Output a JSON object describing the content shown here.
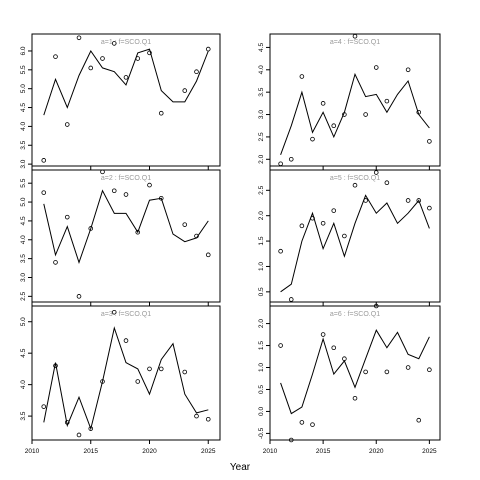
{
  "figure": {
    "xlabel": "Year"
  },
  "chart_data": [
    {
      "type": "line",
      "panel_label": "a=1 : f=SCO.Q1",
      "x": [
        2011,
        2012,
        2013,
        2014,
        2015,
        2016,
        2017,
        2018,
        2019,
        2020,
        2021,
        2022,
        2023,
        2024,
        2025
      ],
      "series": [
        {
          "kind": "line",
          "values": [
            4.3,
            5.25,
            4.5,
            5.35,
            6.0,
            5.55,
            5.45,
            5.1,
            5.95,
            6.05,
            4.95,
            4.65,
            4.65,
            5.2,
            6.0
          ]
        },
        {
          "kind": "points",
          "values": [
            3.1,
            5.85,
            4.05,
            6.35,
            5.55,
            5.8,
            6.2,
            5.3,
            5.8,
            5.95,
            4.35,
            null,
            4.95,
            5.45,
            6.05
          ]
        }
      ],
      "xlim": [
        2010,
        2026
      ],
      "ylim": [
        2.95,
        6.45
      ],
      "yticks": [
        3.0,
        3.5,
        4.0,
        4.5,
        5.0,
        5.5,
        6.0
      ],
      "ytick_labels": [
        "3.0",
        "3.5",
        "4.0",
        "4.5",
        "5.0",
        "5.5",
        "6.0"
      ],
      "xticks": [
        2010,
        2015,
        2020,
        2025
      ],
      "xtick_labels": [],
      "grid": false
    },
    {
      "type": "line",
      "panel_label": "a=2 : f=SCO.Q1",
      "x": [
        2011,
        2012,
        2013,
        2014,
        2015,
        2016,
        2017,
        2018,
        2019,
        2020,
        2021,
        2022,
        2023,
        2024,
        2025
      ],
      "series": [
        {
          "kind": "line",
          "values": [
            4.95,
            3.6,
            4.35,
            3.4,
            4.3,
            5.3,
            4.7,
            4.7,
            4.2,
            5.05,
            5.1,
            4.15,
            3.95,
            4.05,
            4.5
          ]
        },
        {
          "kind": "points",
          "values": [
            5.25,
            3.4,
            4.6,
            2.5,
            4.3,
            5.8,
            5.3,
            5.2,
            4.2,
            5.45,
            5.1,
            null,
            4.4,
            4.1,
            3.6
          ]
        }
      ],
      "xlim": [
        2010,
        2026
      ],
      "ylim": [
        2.35,
        5.85
      ],
      "yticks": [
        2.5,
        3.0,
        3.5,
        4.0,
        4.5,
        5.0,
        5.5
      ],
      "ytick_labels": [
        "2.5",
        "3.0",
        "3.5",
        "4.0",
        "4.5",
        "5.0",
        "5.5"
      ],
      "xticks": [
        2010,
        2015,
        2020,
        2025
      ],
      "xtick_labels": [],
      "grid": false
    },
    {
      "type": "line",
      "panel_label": "a=3 : f=SCO.Q1",
      "x": [
        2011,
        2012,
        2013,
        2014,
        2015,
        2016,
        2017,
        2018,
        2019,
        2020,
        2021,
        2022,
        2023,
        2024,
        2025
      ],
      "series": [
        {
          "kind": "line",
          "values": [
            3.4,
            4.35,
            3.35,
            3.8,
            3.3,
            4.05,
            4.9,
            4.35,
            4.25,
            3.85,
            4.4,
            4.65,
            3.85,
            3.55,
            3.6
          ]
        },
        {
          "kind": "points",
          "values": [
            3.65,
            4.3,
            3.4,
            3.2,
            3.3,
            4.05,
            5.15,
            4.7,
            4.05,
            4.25,
            4.25,
            null,
            4.2,
            3.5,
            3.45
          ]
        }
      ],
      "xlim": [
        2010,
        2026
      ],
      "ylim": [
        3.12,
        5.25
      ],
      "yticks": [
        3.5,
        4.0,
        4.5,
        5.0
      ],
      "ytick_labels": [
        "3.5",
        "4.0",
        "4.5",
        "5.0"
      ],
      "xticks": [
        2010,
        2015,
        2020,
        2025
      ],
      "xtick_labels": [
        "2010",
        "2015",
        "2020",
        "2025"
      ],
      "grid": false
    },
    {
      "type": "line",
      "panel_label": "a=4 : f=SCO.Q1",
      "x": [
        2011,
        2012,
        2013,
        2014,
        2015,
        2016,
        2017,
        2018,
        2019,
        2020,
        2021,
        2022,
        2023,
        2024,
        2025
      ],
      "series": [
        {
          "kind": "line",
          "values": [
            2.1,
            2.75,
            3.5,
            2.6,
            3.05,
            2.5,
            3.05,
            3.9,
            3.4,
            3.45,
            3.05,
            3.45,
            3.75,
            3.0,
            2.7
          ]
        },
        {
          "kind": "points",
          "values": [
            1.9,
            2.0,
            3.85,
            2.45,
            3.25,
            2.75,
            3.0,
            4.75,
            3.0,
            4.05,
            3.3,
            null,
            4.0,
            3.05,
            2.4
          ]
        }
      ],
      "xlim": [
        2010,
        2026
      ],
      "ylim": [
        1.85,
        4.8
      ],
      "yticks": [
        2.0,
        2.5,
        3.0,
        3.5,
        4.0,
        4.5
      ],
      "ytick_labels": [
        "2.0",
        "2.5",
        "3.0",
        "3.5",
        "4.0",
        "4.5"
      ],
      "xticks": [
        2010,
        2015,
        2020,
        2025
      ],
      "xtick_labels": [],
      "grid": false
    },
    {
      "type": "line",
      "panel_label": "a=5 : f=SCO.Q1",
      "x": [
        2011,
        2012,
        2013,
        2014,
        2015,
        2016,
        2017,
        2018,
        2019,
        2020,
        2021,
        2022,
        2023,
        2024,
        2025
      ],
      "series": [
        {
          "kind": "line",
          "values": [
            0.5,
            0.65,
            1.5,
            2.05,
            1.35,
            1.85,
            1.2,
            1.85,
            2.4,
            2.05,
            2.25,
            1.85,
            2.05,
            2.3,
            1.75
          ]
        },
        {
          "kind": "points",
          "values": [
            1.3,
            0.35,
            1.8,
            1.95,
            1.85,
            2.1,
            1.6,
            2.6,
            2.3,
            2.85,
            2.65,
            null,
            2.3,
            2.3,
            2.15
          ]
        }
      ],
      "xlim": [
        2010,
        2026
      ],
      "ylim": [
        0.3,
        2.9
      ],
      "yticks": [
        0.5,
        1.0,
        1.5,
        2.0,
        2.5
      ],
      "ytick_labels": [
        "0.5",
        "1.0",
        "1.5",
        "2.0",
        "2.5"
      ],
      "xticks": [
        2010,
        2015,
        2020,
        2025
      ],
      "xtick_labels": [],
      "grid": false
    },
    {
      "type": "line",
      "panel_label": "a=6 : f=SCO.Q1",
      "x": [
        2011,
        2012,
        2013,
        2014,
        2015,
        2016,
        2017,
        2018,
        2019,
        2020,
        2021,
        2022,
        2023,
        2024,
        2025
      ],
      "series": [
        {
          "kind": "line",
          "values": [
            0.65,
            -0.05,
            0.1,
            0.85,
            1.65,
            0.85,
            1.15,
            0.55,
            1.2,
            1.85,
            1.45,
            1.8,
            1.3,
            1.2,
            1.7
          ]
        },
        {
          "kind": "points",
          "values": [
            1.5,
            -0.65,
            -0.25,
            -0.3,
            1.75,
            1.45,
            1.2,
            0.3,
            0.9,
            2.4,
            0.9,
            null,
            1.0,
            -0.2,
            0.95
          ]
        }
      ],
      "xlim": [
        2010,
        2026
      ],
      "ylim": [
        -0.65,
        2.4
      ],
      "yticks": [
        -0.5,
        0.0,
        0.5,
        1.0,
        1.5,
        2.0
      ],
      "ytick_labels": [
        "-0.5",
        "0.0",
        "0.5",
        "1.0",
        "1.5",
        "2.0"
      ],
      "xticks": [
        2010,
        2015,
        2020,
        2025
      ],
      "xtick_labels": [
        "2010",
        "2015",
        "2020",
        "2025"
      ],
      "grid": false
    }
  ]
}
